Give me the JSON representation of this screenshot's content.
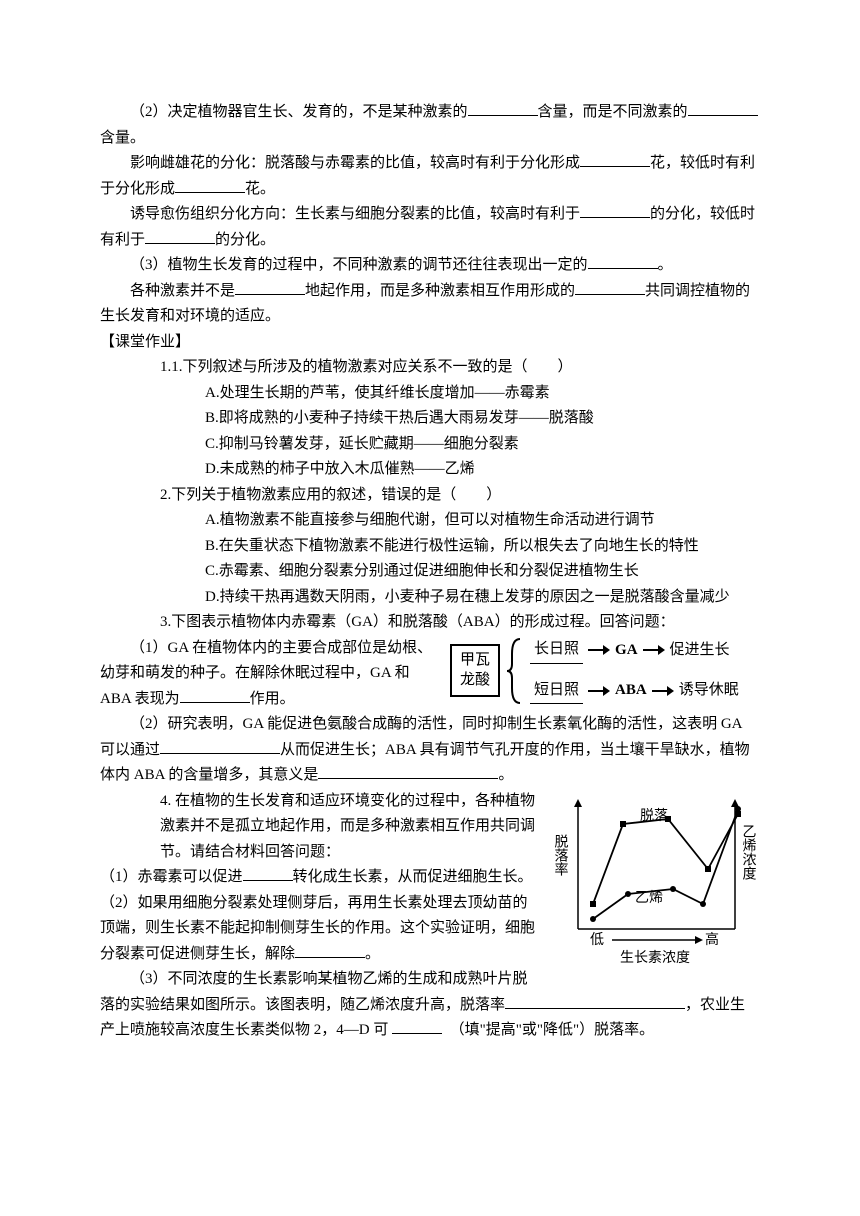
{
  "p2": {
    "text_a": "（2）决定植物器官生长、发育的，不是某种激素的",
    "text_b": "含量，而是不同激素的",
    "text_c": "含量。"
  },
  "p3": {
    "text_a": "影响雌雄花的分化：脱落酸与赤霉素的比值，较高时有利于分化形成",
    "text_b": "花，较低时有利于分化形成",
    "text_c": "花。"
  },
  "p4": {
    "text_a": "诱导愈伤组织分化方向：生长素与细胞分裂素的比值，较高时有利于",
    "text_b": "的分化，较低时有利于",
    "text_c": "的分化。"
  },
  "p5": {
    "text_a": "（3）植物生长发育的过程中，不同种激素的调节还往往表现出一定的",
    "text_b": "。"
  },
  "p6": {
    "text_a": "各种激素并不是",
    "text_b": "地起作用，而是多种激素相互作用形成的",
    "text_c": "共同调控植物的生长发育和对环境的适应。"
  },
  "section2": "【课堂作业】",
  "q1": {
    "stem": "1.1.下列叙述与所涉及的植物激素对应关系不一致的是（　　）",
    "a": "A.处理生长期的芦苇，使其纤维长度增加——赤霉素",
    "b": "B.即将成熟的小麦种子持续干热后遇大雨易发芽——脱落酸",
    "c": "C.抑制马铃薯发芽，延长贮藏期——细胞分裂素",
    "d": "D.未成熟的柿子中放入木瓜催熟——乙烯"
  },
  "q2": {
    "stem": "2.下列关于植物激素应用的叙述，错误的是（　　）",
    "a": "A.植物激素不能直接参与细胞代谢，但可以对植物生命活动进行调节",
    "b": "B.在失重状态下植物激素不能进行极性运输，所以根失去了向地生长的特性",
    "c": "C.赤霉素、细胞分裂素分别通过促进细胞伸长和分裂促进植物生长",
    "d": "D.持续干热再遇数天阴雨，小麦种子易在穗上发芽的原因之一是脱落酸含量减少"
  },
  "q3": {
    "stem": "3.下图表示植物体内赤霉素（GA）和脱落酸（ABA）的形成过程。回答问题：",
    "p1a": "（1）GA 在植物体内的主要合成部位是幼根、幼芽和萌发的种子。在解除休眠过程中，GA 和 ABA 表现为",
    "p1b": "作用。",
    "p2a": "（2）研究表明，GA 能促进色氨酸合成酶的活性，同时抑制生长素氧化酶的活性，这表明 GA 可以通过",
    "p2b": "从而促进生长；ABA 具有调节气孔开度的作用，当土壤干旱缺水，植物体内 ABA 的含量增多，其意义是",
    "p2c": "。"
  },
  "diagram": {
    "box": "甲瓦\n龙酸",
    "top_a": "长日照",
    "top_b": "GA",
    "top_c": "促进生长",
    "bot_a": "短日照",
    "bot_b": "ABA",
    "bot_c": "诱导休眠"
  },
  "q4": {
    "stem": "4. 在植物的生长发育和适应环境变化的过程中，各种植物激素并不是孤立地起作用，而是多种激素相互作用共同调节。请结合材料回答问题：",
    "p1a": "（1）赤霉素可以促进",
    "p1b": "转化成生长素，从而促进细胞生长。",
    "p2a": "（2）如果用细胞分裂素处理侧芽后，再用生长素处理去顶幼苗的顶端，则生长素不能起抑制侧芽生长的作用。这个实验证明，细胞分裂素可促进侧芽生长，解除",
    "p2b": "。",
    "p3a": "（3）不同浓度的生长素影响某植物乙烯的生成和成熟叶片脱落的实验结果如图所示。该图表明，随乙烯浓度升高，脱落率",
    "p3b": "，农业生产上喷施较高浓度生长素类似物 2，4—D 可",
    "p3c": "（填\"提高\"或\"降低\"）脱落率。"
  },
  "chart": {
    "ylabel": "脱落率",
    "series1": "脱落",
    "series2": "乙烯",
    "ylabel2": "乙烯浓度",
    "xlow": "低",
    "xhigh": "高",
    "xlabel": "生长素浓度",
    "line1_points": "15,110 45,30 90,25 130,75 160,20",
    "line2_points": "15,125 50,100 95,95 125,110 160,15",
    "colors": {
      "stroke": "#000000",
      "bg": "#ffffff"
    }
  }
}
